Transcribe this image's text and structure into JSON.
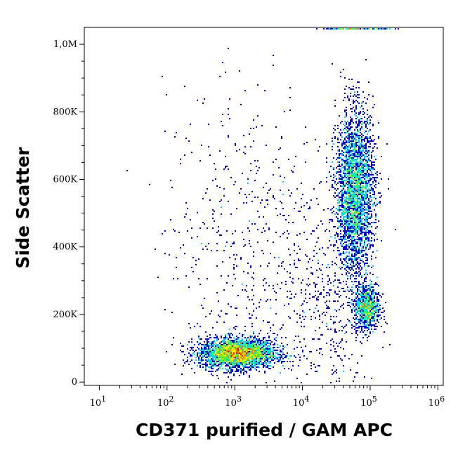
{
  "chart_data": {
    "type": "scatter",
    "subtype": "flow-cytometry-density-dot-plot",
    "xlabel": "CD371 purified / GAM APC",
    "ylabel": "Side Scatter",
    "x_scale": "log",
    "xlim": [
      6,
      1200000
    ],
    "ylim": [
      -10000,
      1050000
    ],
    "x_ticks": [
      {
        "value": 10,
        "base": "10",
        "exp": "1"
      },
      {
        "value": 100,
        "base": "10",
        "exp": "2"
      },
      {
        "value": 1000,
        "base": "10",
        "exp": "3"
      },
      {
        "value": 10000,
        "base": "10",
        "exp": "4"
      },
      {
        "value": 100000,
        "base": "10",
        "exp": "5"
      },
      {
        "value": 1000000,
        "base": "10",
        "exp": "6"
      }
    ],
    "y_ticks": [
      {
        "value": 0,
        "label": "0"
      },
      {
        "value": 200000,
        "label": "200K"
      },
      {
        "value": 400000,
        "label": "400K"
      },
      {
        "value": 600000,
        "label": "600K"
      },
      {
        "value": 800000,
        "label": "800K"
      },
      {
        "value": 1000000,
        "label": "1,0M"
      }
    ],
    "colormap": [
      "#0000cc",
      "#0066ff",
      "#00ccff",
      "#00ff99",
      "#66ff00",
      "#ffee00",
      "#ff7700",
      "#ff0000"
    ],
    "populations": [
      {
        "x_center": 1100,
        "x_log_sd": 0.28,
        "y_center": 85000,
        "y_sd": 22000,
        "count": 3200
      },
      {
        "x_center": 60000,
        "x_log_sd": 0.14,
        "y_center": 560000,
        "y_sd": 120000,
        "count": 3200
      },
      {
        "x_center": 90000,
        "x_log_sd": 0.09,
        "y_center": 220000,
        "y_sd": 33000,
        "count": 900
      },
      {
        "x_center": 1500,
        "x_log_sd": 0.6,
        "y_center": 420000,
        "y_sd": 230000,
        "count": 550
      },
      {
        "x_center": 25000,
        "x_log_sd": 0.35,
        "y_center": 200000,
        "y_sd": 150000,
        "count": 400
      }
    ],
    "grid": false,
    "legend": "none"
  }
}
